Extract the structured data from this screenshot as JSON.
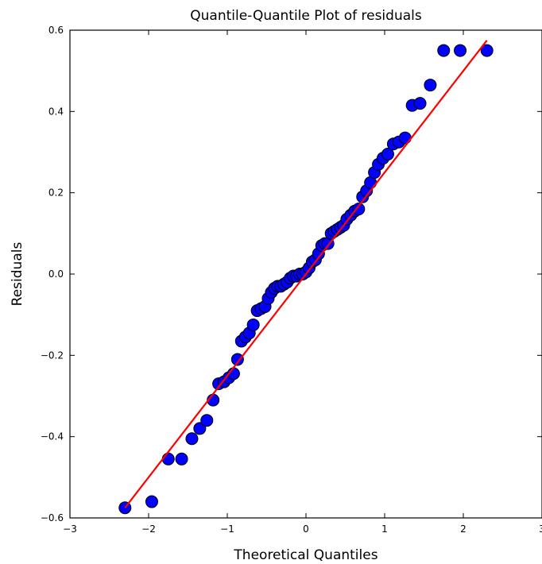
{
  "chart_data": {
    "type": "scatter",
    "title": "Quantile-Quantile Plot of residuals",
    "xlabel": "Theoretical Quantiles",
    "ylabel": "Residuals",
    "xlim": [
      -3,
      3
    ],
    "ylim": [
      -0.6,
      0.6
    ],
    "xticks": [
      "−3",
      "−2",
      "−1",
      "0",
      "1",
      "2",
      "3"
    ],
    "yticks": [
      "0.6",
      "0.4",
      "0.2",
      "0.0",
      "−0.2",
      "−0.4",
      "−0.6"
    ],
    "grid": false,
    "colors": {
      "points": "#0000ff",
      "point_edge": "#000000",
      "line": "#ff0000"
    },
    "series": [
      {
        "type": "scatter",
        "x": [
          -2.3,
          -1.96,
          -1.75,
          -1.58,
          -1.45,
          -1.35,
          -1.26,
          -1.18,
          -1.11,
          -1.04,
          -0.98,
          -0.92,
          -0.87,
          -0.82,
          -0.77,
          -0.72,
          -0.67,
          -0.62,
          -0.57,
          -0.52,
          -0.48,
          -0.44,
          -0.4,
          -0.36,
          -0.32,
          -0.28,
          -0.24,
          -0.2,
          -0.16,
          -0.12,
          -0.08,
          -0.04,
          0.0,
          0.04,
          0.08,
          0.12,
          0.16,
          0.2,
          0.24,
          0.28,
          0.32,
          0.36,
          0.4,
          0.44,
          0.48,
          0.52,
          0.57,
          0.62,
          0.67,
          0.72,
          0.77,
          0.82,
          0.87,
          0.92,
          0.98,
          1.04,
          1.11,
          1.18,
          1.26,
          1.35,
          1.45,
          1.58,
          1.75,
          1.96,
          2.3
        ],
        "y": [
          -0.575,
          -0.56,
          -0.455,
          -0.455,
          -0.405,
          -0.38,
          -0.36,
          -0.31,
          -0.27,
          -0.265,
          -0.255,
          -0.245,
          -0.21,
          -0.165,
          -0.155,
          -0.145,
          -0.125,
          -0.09,
          -0.085,
          -0.08,
          -0.06,
          -0.045,
          -0.035,
          -0.03,
          -0.03,
          -0.025,
          -0.02,
          -0.01,
          -0.005,
          -0.005,
          0.0,
          0.0,
          0.005,
          0.015,
          0.03,
          0.035,
          0.05,
          0.07,
          0.075,
          0.075,
          0.1,
          0.105,
          0.11,
          0.115,
          0.12,
          0.135,
          0.145,
          0.155,
          0.16,
          0.19,
          0.205,
          0.225,
          0.25,
          0.27,
          0.285,
          0.295,
          0.32,
          0.325,
          0.335,
          0.415,
          0.42,
          0.465,
          0.55,
          0.55,
          0.55
        ]
      },
      {
        "type": "line",
        "x": [
          -2.3,
          2.3
        ],
        "y": [
          -0.575,
          0.575
        ]
      }
    ]
  }
}
